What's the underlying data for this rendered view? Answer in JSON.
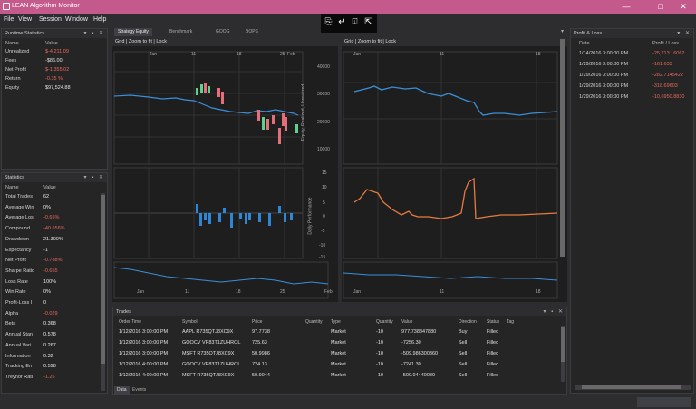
{
  "window": {
    "title": "LEAN Algorithm Monitor",
    "minimize": "—",
    "maximize": "□",
    "close": "✕"
  },
  "menu": [
    "File",
    "View",
    "Session",
    "Window",
    "Help"
  ],
  "toolbar_icons": [
    "open-icon",
    "import-icon",
    "export-icon",
    "connect-icon"
  ],
  "doc_tabs": [
    "Strategy Equity",
    "Benchmark",
    "GOOG",
    "BOPS"
  ],
  "runtime_stats": {
    "title": "Runtime Statistics",
    "col_name": "Name",
    "col_value": "Value",
    "rows": [
      {
        "name": "Unrealized",
        "value": "$-4,211.09",
        "neg": true
      },
      {
        "name": "Fees",
        "value": "-$86.00",
        "neg": false
      },
      {
        "name": "Net Profit",
        "value": "$-1,355.02",
        "neg": true
      },
      {
        "name": "Return",
        "value": "-0.35 %",
        "neg": true
      },
      {
        "name": "Equity",
        "value": "$97,524.88",
        "neg": false
      }
    ]
  },
  "statistics": {
    "title": "Statistics",
    "col_name": "Name",
    "col_value": "Value",
    "rows": [
      {
        "name": "Total Trades",
        "value": "62",
        "neg": false
      },
      {
        "name": "Average Win",
        "value": "0%",
        "neg": false
      },
      {
        "name": "Average Los",
        "value": "-0.65%",
        "neg": true
      },
      {
        "name": "Compound",
        "value": "-40.656%",
        "neg": true
      },
      {
        "name": "Drawdown",
        "value": "21.300%",
        "neg": false
      },
      {
        "name": "Expectancy",
        "value": "-1",
        "neg": false
      },
      {
        "name": "Net Profit",
        "value": "-0.788%",
        "neg": true
      },
      {
        "name": "Sharpe Ratio",
        "value": "-0.655",
        "neg": true
      },
      {
        "name": "Loss Rate",
        "value": "100%",
        "neg": false
      },
      {
        "name": "Win Rate",
        "value": "0%",
        "neg": false
      },
      {
        "name": "Profit-Loss I",
        "value": "0",
        "neg": false
      },
      {
        "name": "Alpha",
        "value": "-0.029",
        "neg": true
      },
      {
        "name": "Beta",
        "value": "0.368",
        "neg": false
      },
      {
        "name": "Annual Stan",
        "value": "0.578",
        "neg": false
      },
      {
        "name": "Annual Vari",
        "value": "0.267",
        "neg": false
      },
      {
        "name": "Information",
        "value": "0.32",
        "neg": false
      },
      {
        "name": "Tracking Err",
        "value": "0.598",
        "neg": false
      },
      {
        "name": "Treynor Rati",
        "value": "-1.26",
        "neg": true
      }
    ]
  },
  "profit_loss": {
    "title": "Profit & Loss",
    "col_date": "Date",
    "col_pl": "Profit / Loss",
    "rows": [
      {
        "date": "1/14/2016 3:00:00 PM",
        "pl": "-25,713.16062"
      },
      {
        "date": "1/29/2016 3:00:00 PM",
        "pl": "-161.633"
      },
      {
        "date": "1/29/2016 3:00:00 PM",
        "pl": "-282.7145422"
      },
      {
        "date": "1/29/2016 3:00:00 PM",
        "pl": "-318.69603"
      },
      {
        "date": "1/29/2016 3:00:00 PM",
        "pl": "-10,6950.8830"
      }
    ]
  },
  "left_chart": {
    "toolbar": "Grid | Zoom to fit | Lock",
    "x_ticks": [
      "Jan",
      "11",
      "18",
      "25",
      "Feb"
    ],
    "x_ticks_bottom": [
      "Jan",
      "11",
      "18",
      "25",
      "Feb"
    ],
    "y_ticks_top": [
      "40000",
      "30000",
      "20000",
      "10000"
    ],
    "y_ticks_mid": [
      "15",
      "10",
      "5",
      "0",
      "-5",
      "-10",
      "-15"
    ],
    "y_label_top": "Equity, Realized, Unrealized",
    "y_label_mid": "Daily Performance"
  },
  "right_chart": {
    "toolbar": "Grid | Zoom to fit | Lock",
    "x_ticks": [
      "Jan",
      "11",
      "18"
    ],
    "x_ticks_bottom": [
      "Jan",
      "11",
      "18"
    ]
  },
  "trades": {
    "title": "Trades",
    "columns": [
      "Order Time",
      "Symbol",
      "Price",
      "Quantity",
      "Type",
      "Quantity",
      "Value",
      "Direction",
      "Status",
      "Tag"
    ],
    "rows": [
      {
        "time": "1/12/2016 3:00:00 PM",
        "symbol": "AAPL R735QTJ8XC9X",
        "price": "97.7738",
        "type": "Market",
        "qty": "-10",
        "value": "977.738847880",
        "dir": "Buy",
        "status": "Filled"
      },
      {
        "time": "1/12/2016 3:00:00 PM",
        "symbol": "GOOCV VP83T1ZUHROL",
        "price": "725.63",
        "type": "Market",
        "qty": "-10",
        "value": "-7256.30",
        "dir": "Sell",
        "status": "Filled"
      },
      {
        "time": "1/12/2016 3:00:00 PM",
        "symbol": "MSFT R735QTJ8XC9X",
        "price": "50.9986",
        "type": "Market",
        "qty": "-10",
        "value": "-509.986300360",
        "dir": "Sell",
        "status": "Filled"
      },
      {
        "time": "1/12/2016 4:00:00 PM",
        "symbol": "GOOCV VP83T1ZUHROL",
        "price": "724.13",
        "type": "Market",
        "qty": "-10",
        "value": "-7241.30",
        "dir": "Sell",
        "status": "Filled"
      },
      {
        "time": "1/12/2016 4:00:00 PM",
        "symbol": "MSFT R735QTJ8XC9X",
        "price": "50.9044",
        "type": "Market",
        "qty": "-10",
        "value": "-509.04440080",
        "dir": "Sell",
        "status": "Filled"
      }
    ],
    "bottom_tabs": [
      "Data",
      "Events"
    ]
  }
}
